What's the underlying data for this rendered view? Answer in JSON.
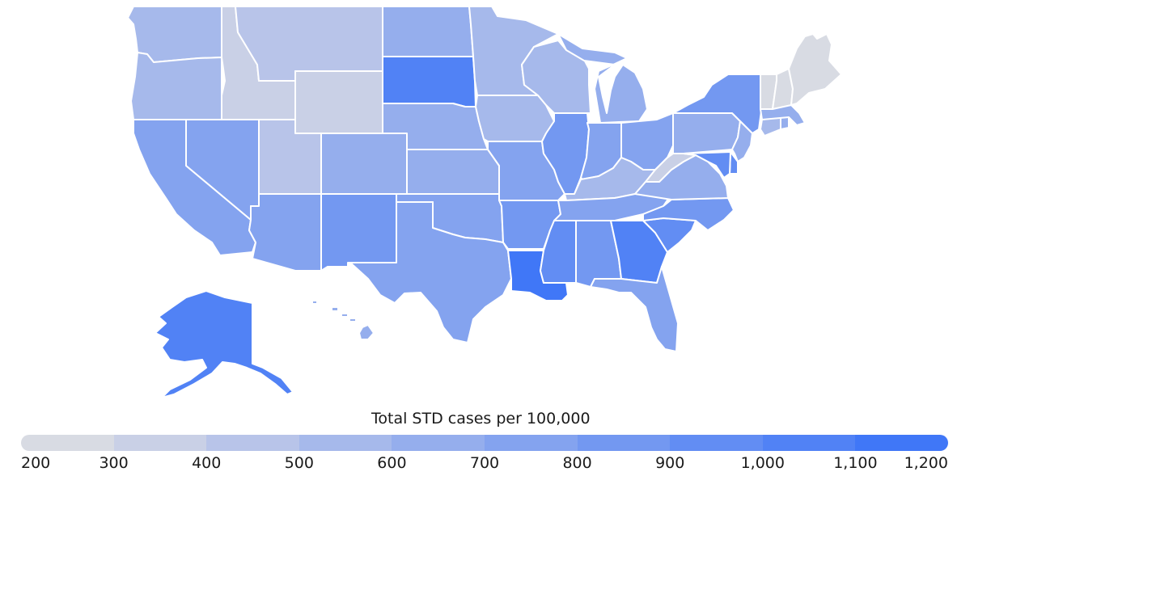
{
  "legend": {
    "title": "Total STD cases per 100,000",
    "ticks": [
      "200",
      "300",
      "400",
      "500",
      "600",
      "700",
      "800",
      "900",
      "1,000",
      "1,100",
      "1,200"
    ],
    "colors": [
      "#d8dbe3",
      "#c9d0e6",
      "#b8c4e9",
      "#a6b9eb",
      "#95aeed",
      "#84a3ef",
      "#7398f1",
      "#628df3",
      "#5182f5",
      "#4077f7"
    ]
  },
  "states": {
    "WA": {
      "value": 550
    },
    "OR": {
      "value": 560
    },
    "CA": {
      "value": 760
    },
    "NV": {
      "value": 780
    },
    "ID": {
      "value": 330
    },
    "MT": {
      "value": 420
    },
    "WY": {
      "value": 330
    },
    "UT": {
      "value": 450
    },
    "CO": {
      "value": 620
    },
    "AZ": {
      "value": 780
    },
    "NM": {
      "value": 800
    },
    "ND": {
      "value": 630
    },
    "SD": {
      "value": 1050
    },
    "NE": {
      "value": 640
    },
    "KS": {
      "value": 640
    },
    "OK": {
      "value": 760
    },
    "TX": {
      "value": 760
    },
    "MN": {
      "value": 520
    },
    "IA": {
      "value": 580
    },
    "MO": {
      "value": 770
    },
    "AR": {
      "value": 840
    },
    "LA": {
      "value": 1180
    },
    "WI": {
      "value": 560
    },
    "IL": {
      "value": 840
    },
    "MI": {
      "value": 680
    },
    "IN": {
      "value": 700
    },
    "OH": {
      "value": 720
    },
    "KY": {
      "value": 540
    },
    "TN": {
      "value": 760
    },
    "MS": {
      "value": 990
    },
    "AL": {
      "value": 870
    },
    "GA": {
      "value": 1000
    },
    "FL": {
      "value": 790
    },
    "SC": {
      "value": 930
    },
    "NC": {
      "value": 870
    },
    "VA": {
      "value": 690
    },
    "WV": {
      "value": 380
    },
    "PA": {
      "value": 620
    },
    "NY": {
      "value": 840
    },
    "NJ": {
      "value": 640
    },
    "DE": {
      "value": 900
    },
    "MD": {
      "value": 920
    },
    "CT": {
      "value": 580
    },
    "RI": {
      "value": 620
    },
    "MA": {
      "value": 600
    },
    "VT": {
      "value": 280
    },
    "NH": {
      "value": 280
    },
    "ME": {
      "value": 230
    },
    "AK": {
      "value": 1030
    },
    "HI": {
      "value": 640
    }
  }
}
